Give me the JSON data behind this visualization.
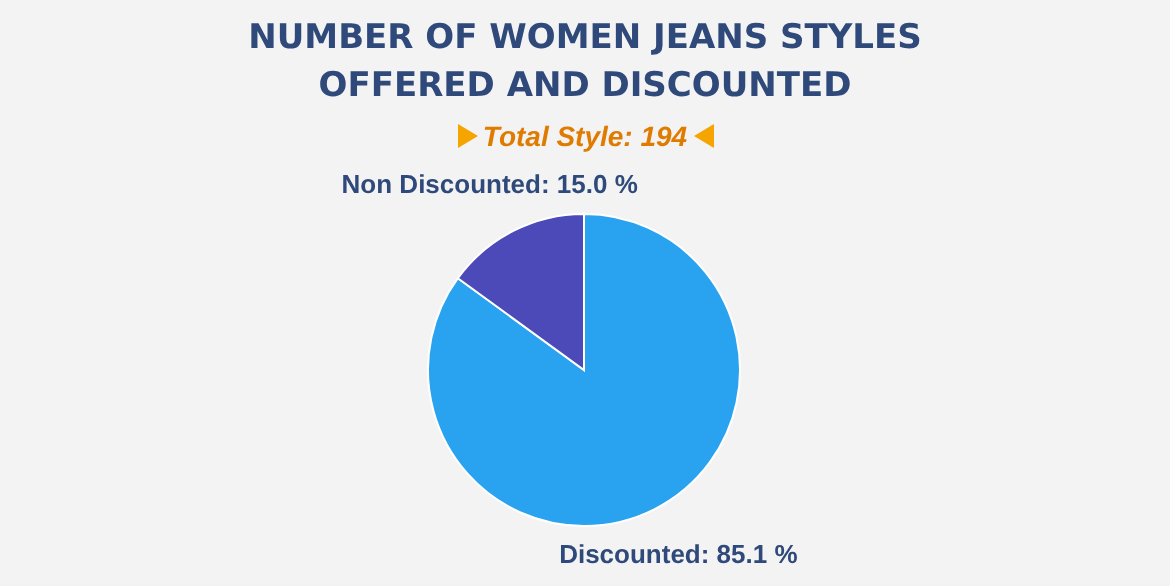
{
  "chart_data": {
    "type": "pie",
    "title": "NUMBER OF WOMEN JEANS STYLES OFFERED AND DISCOUNTED",
    "subtitle": "Total Style: 194",
    "categories": [
      "Discounted",
      "Non Discounted"
    ],
    "values": [
      85.1,
      15.0
    ],
    "colors": [
      "#29a3ef",
      "#4c4ab8"
    ],
    "value_labels": [
      "85.1 %",
      "15.0 %"
    ],
    "legend": false
  }
}
